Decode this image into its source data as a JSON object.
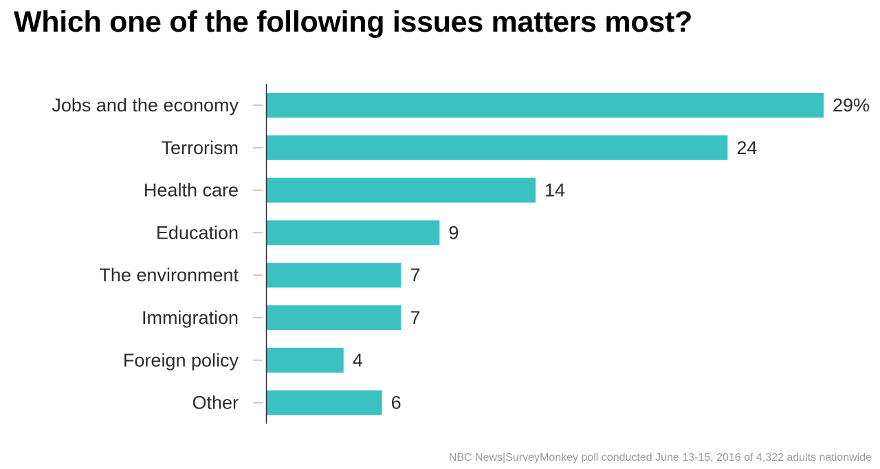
{
  "chart_data": {
    "type": "bar",
    "orientation": "horizontal",
    "title": "Which one of the following issues matters most?",
    "categories": [
      "Jobs and the economy",
      "Terrorism",
      "Health care",
      "Education",
      "The environment",
      "Immigration",
      "Foreign policy",
      "Other"
    ],
    "values": [
      29,
      24,
      14,
      9,
      7,
      7,
      4,
      6
    ],
    "value_labels": [
      "29%",
      "24",
      "14",
      "9",
      "7",
      "7",
      "4",
      "6"
    ],
    "unit": "%",
    "xlabel": "",
    "ylabel": "",
    "xlim": [
      0,
      29
    ],
    "grid": false,
    "legend": "none",
    "bar_color": "#3cc1c2",
    "axis_color": "#333333",
    "tick_color": "#c8c8c8",
    "source": "NBC News|SurveyMonkey poll conducted June 13-15, 2016 of 4,322 adults nationwide"
  }
}
